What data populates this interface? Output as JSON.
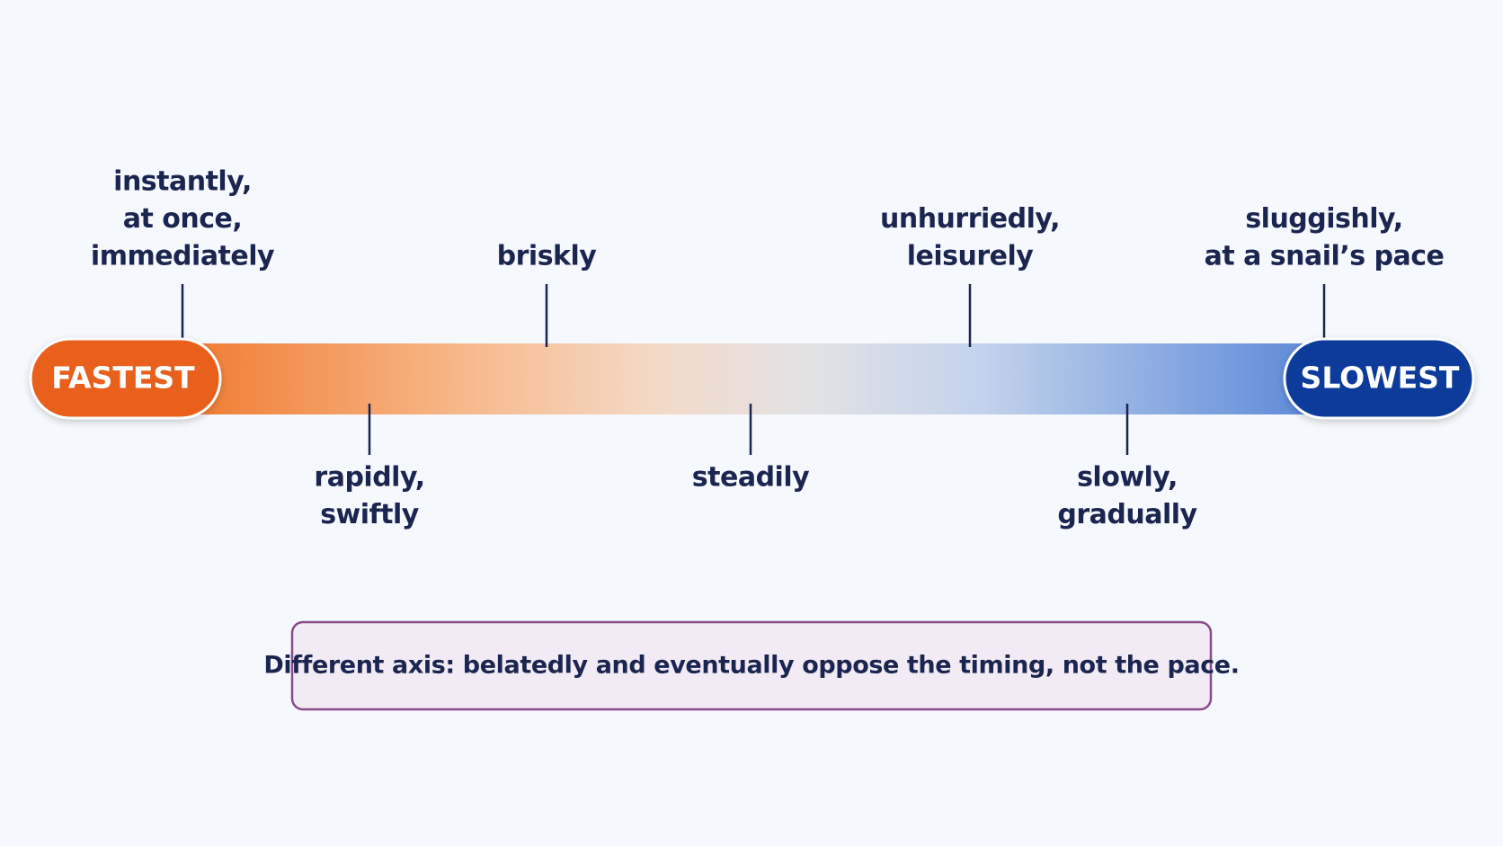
{
  "scale": {
    "start": "FASTEST",
    "end": "SLOWEST"
  },
  "above": [
    {
      "lines": [
        "instantly,",
        "at once,",
        "immediately"
      ]
    },
    {
      "lines": [
        "briskly"
      ]
    },
    {
      "lines": [
        "unhurriedly,",
        "leisurely"
      ]
    },
    {
      "lines": [
        "sluggishly,",
        "at a snail’s pace"
      ]
    }
  ],
  "below": [
    {
      "lines": [
        "rapidly,",
        "swiftly"
      ]
    },
    {
      "lines": [
        "steadily"
      ]
    },
    {
      "lines": [
        "slowly,",
        "gradually"
      ]
    }
  ],
  "note": "Different axis: belatedly and eventually oppose the timing, not the pace."
}
